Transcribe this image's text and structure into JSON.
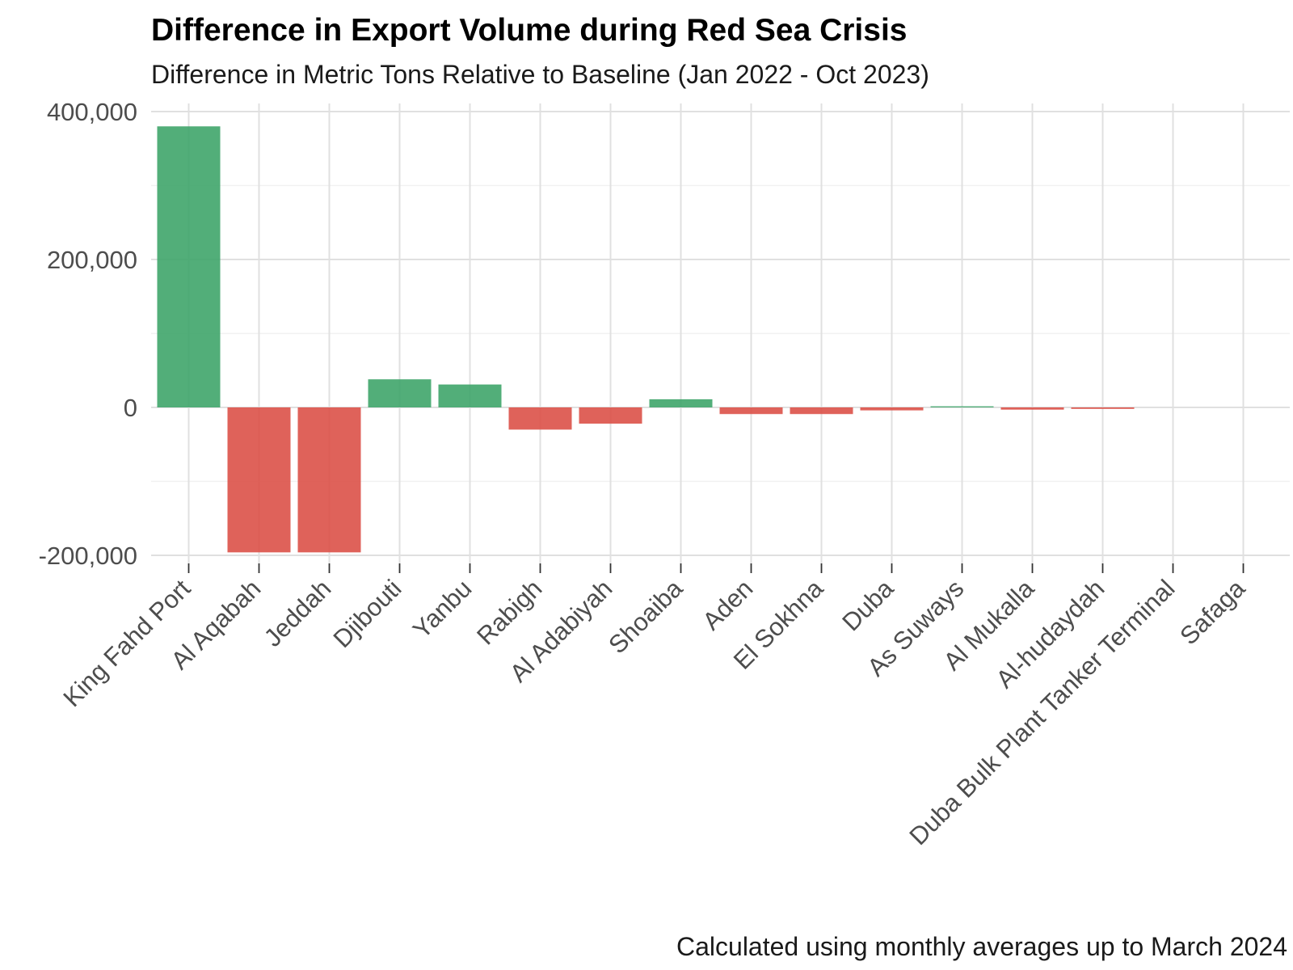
{
  "chart_data": {
    "type": "bar",
    "title": "Difference in Export Volume during Red Sea Crisis",
    "subtitle": "Difference in Metric Tons Relative to Baseline (Jan 2022 - Oct 2023)",
    "caption": "Calculated using monthly averages up to March 2024",
    "xlabel": "",
    "ylabel": "",
    "categories": [
      "King Fahd Port",
      "Al Aqabah",
      "Jeddah",
      "Djibouti",
      "Yanbu",
      "Rabigh",
      "Al Adabiyah",
      "Shoaiba",
      "Aden",
      "El Sokhna",
      "Duba",
      "As Suways",
      "Al Mukalla",
      "Al-hudaydah",
      "Duba Bulk Plant Tanker Terminal",
      "Safaga"
    ],
    "values": [
      380000,
      -196000,
      -196000,
      38000,
      31000,
      -30000,
      -22000,
      11000,
      -9000,
      -9000,
      -4000,
      1500,
      -3000,
      -2000,
      0,
      0
    ],
    "ylim": [
      -200000,
      400000
    ],
    "y_ticks": [
      {
        "value": -200000,
        "label": "-200,000"
      },
      {
        "value": 0,
        "label": "0"
      },
      {
        "value": 200000,
        "label": "200,000"
      },
      {
        "value": 400000,
        "label": "400,000"
      }
    ],
    "colors": {
      "positive": "#3fa56a",
      "negative": "#dc5148"
    },
    "grid": true,
    "legend": "none"
  }
}
